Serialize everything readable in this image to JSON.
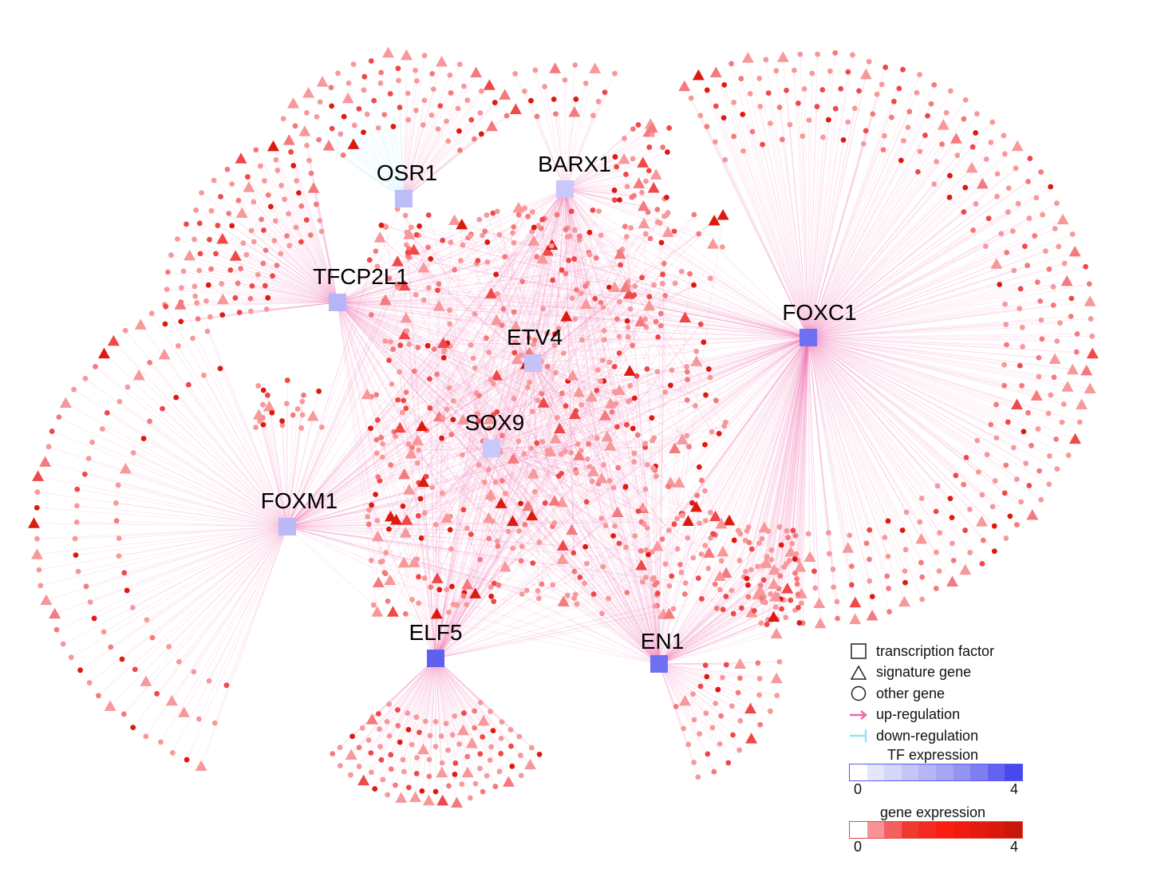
{
  "transcription_factors": [
    {
      "name": "OSR1",
      "expression": 1.0
    },
    {
      "name": "BARX1",
      "expression": 0.7
    },
    {
      "name": "TFCP2L1",
      "expression": 1.2
    },
    {
      "name": "ETV4",
      "expression": 0.8
    },
    {
      "name": "SOX9",
      "expression": 0.7
    },
    {
      "name": "FOXM1",
      "expression": 1.1
    },
    {
      "name": "FOXC1",
      "expression": 3.0
    },
    {
      "name": "ELF5",
      "expression": 3.4
    },
    {
      "name": "EN1",
      "expression": 3.0
    }
  ],
  "legend": {
    "transcription_factor": "transcription factor",
    "signature_gene": "signature gene",
    "other_gene": "other gene",
    "up_regulation": "up-regulation",
    "down_regulation": "down-regulation",
    "tf_expression": {
      "title": "TF expression",
      "min": "0",
      "max": "4",
      "colors": [
        "#ffffff",
        "#e6e6fb",
        "#d6d6f8",
        "#c6c6f6",
        "#b6b6f4",
        "#a5a5f2",
        "#9393f0",
        "#7e7ef0",
        "#6363f0",
        "#4848ee"
      ]
    },
    "gene_expression": {
      "title": "gene expression",
      "min": "0",
      "max": "4",
      "colors": [
        "#ffffff",
        "#f79296",
        "#f55f5f",
        "#f03a30",
        "#f22a22",
        "#fb1e10",
        "#ee1d10",
        "#e31a0e",
        "#d8190c",
        "#c8180a"
      ]
    }
  },
  "colors": {
    "up_regulation": "#f06aa8",
    "down_regulation": "#8ee8f0",
    "tf_node_low": "#c8c8f8",
    "tf_node_high": "#6a6af2"
  }
}
